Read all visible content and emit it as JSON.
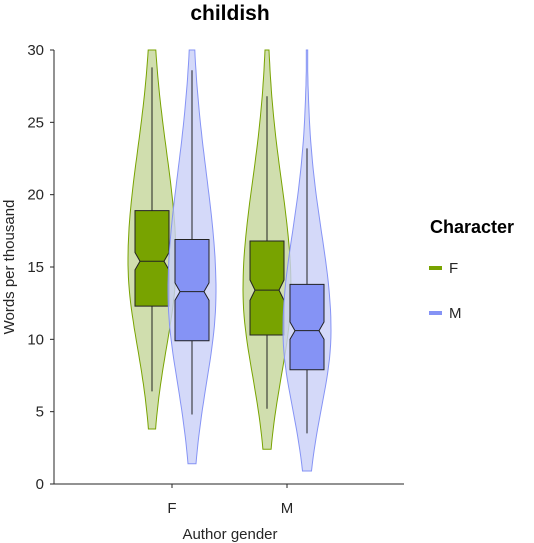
{
  "chart_data": {
    "type": "violin",
    "title": "childish",
    "xlabel": "Author gender",
    "ylabel": "Words per thousand",
    "categories": [
      "F",
      "M"
    ],
    "ylim": [
      0,
      30
    ],
    "yticks": [
      0,
      5,
      10,
      15,
      20,
      25,
      30
    ],
    "grid": false,
    "legend": {
      "title": "Character",
      "placement": "right",
      "entries": [
        {
          "label": "F",
          "color": "#78a300"
        },
        {
          "label": "M",
          "color": "#8593f5"
        }
      ]
    },
    "series": [
      {
        "name": "F",
        "color": "#78a300",
        "fill": "#c4d69a",
        "groups": [
          {
            "category": "F",
            "q1": 12.3,
            "median": 15.4,
            "q3": 18.9,
            "notch_low": 14.8,
            "notch_high": 16.0,
            "whisker_low": 6.4,
            "whisker_high": 28.8,
            "violin_min": 3.8,
            "violin_max": 30
          },
          {
            "category": "M",
            "q1": 10.3,
            "median": 13.4,
            "q3": 16.8,
            "notch_low": 12.7,
            "notch_high": 14.1,
            "whisker_low": 5.2,
            "whisker_high": 26.8,
            "violin_min": 2.4,
            "violin_max": 30
          }
        ]
      },
      {
        "name": "M",
        "color": "#8593f5",
        "fill": "#c9cff7",
        "groups": [
          {
            "category": "F",
            "q1": 9.9,
            "median": 13.3,
            "q3": 16.9,
            "notch_low": 12.7,
            "notch_high": 13.9,
            "whisker_low": 4.8,
            "whisker_high": 28.6,
            "violin_min": 1.4,
            "violin_max": 30
          },
          {
            "category": "M",
            "q1": 7.9,
            "median": 10.6,
            "q3": 13.8,
            "notch_low": 10.0,
            "notch_high": 11.2,
            "whisker_low": 3.5,
            "whisker_high": 23.2,
            "violin_min": 0.9,
            "violin_max": 30
          }
        ]
      }
    ]
  }
}
